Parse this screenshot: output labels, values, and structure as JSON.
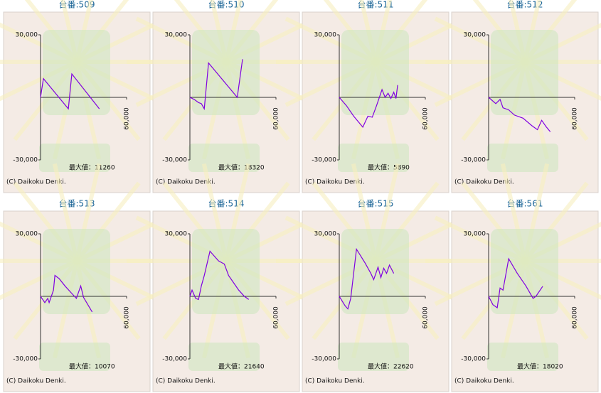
{
  "chart_data": [
    {
      "type": "line",
      "title": "台番:509",
      "color": "#8000e0",
      "xlim": [
        0,
        60000
      ],
      "xticks": [
        {
          "value": 60000,
          "label": "60,000"
        }
      ],
      "ylim": [
        -30000,
        30000
      ],
      "yticks": [
        {
          "value": 30000,
          "label": "30,000"
        },
        {
          "value": -30000,
          "label": "-30,000"
        }
      ],
      "x": [
        0,
        2000,
        19400,
        21800,
        41000
      ],
      "values": [
        0,
        9000,
        -5500,
        11260,
        -5500
      ],
      "annotation": "最大値：11260",
      "copyright": "(C) Daikoku Denki."
    },
    {
      "type": "line",
      "title": "台番:510",
      "color": "#8000e0",
      "xlim": [
        0,
        60000
      ],
      "xticks": [
        {
          "value": 60000,
          "label": "60,000"
        }
      ],
      "ylim": [
        -30000,
        30000
      ],
      "yticks": [
        {
          "value": 30000,
          "label": "30,000"
        },
        {
          "value": -30000,
          "label": "-30,000"
        }
      ],
      "x": [
        0,
        3000,
        6000,
        8000,
        10000,
        13000,
        33000,
        36700
      ],
      "values": [
        0,
        -1000,
        -2500,
        -3000,
        -5500,
        16500,
        0,
        18320
      ],
      "annotation": "最大値：18320",
      "copyright": "(C) Daikoku Denki."
    },
    {
      "type": "line",
      "title": "台番:511",
      "color": "#8000e0",
      "xlim": [
        0,
        60000
      ],
      "xticks": [
        {
          "value": 60000,
          "label": "60,000"
        }
      ],
      "ylim": [
        -30000,
        30000
      ],
      "yticks": [
        {
          "value": 30000,
          "label": "30,000"
        },
        {
          "value": -30000,
          "label": "-30,000"
        }
      ],
      "x": [
        0,
        5000,
        10000,
        16400,
        20000,
        23000,
        26000,
        29800,
        32000,
        34000,
        36000,
        38000,
        39500,
        40700
      ],
      "values": [
        0,
        -4000,
        -9000,
        -14300,
        -9000,
        -9500,
        -4000,
        3700,
        0,
        2000,
        -500,
        2500,
        -500,
        5890
      ],
      "annotation": "最大値：5890",
      "copyright": "(C) Daikoku Denki."
    },
    {
      "type": "line",
      "title": "台番:512",
      "color": "#8000e0",
      "xlim": [
        0,
        60000
      ],
      "xticks": [
        {
          "value": 60000,
          "label": "60,000"
        }
      ],
      "ylim": [
        -30000,
        30000
      ],
      "yticks": [
        {
          "value": 30000,
          "label": "30,000"
        },
        {
          "value": -30000,
          "label": "-30,000"
        }
      ],
      "x": [
        0,
        5000,
        8000,
        10000,
        14000,
        18000,
        24000,
        30000,
        34000,
        37000,
        40000,
        43000
      ],
      "values": [
        0,
        -3000,
        -1000,
        -5000,
        -6000,
        -8500,
        -10000,
        -13500,
        -15500,
        -11000,
        -14000,
        -16500
      ],
      "copyright": "(C) Daikoku Denki."
    },
    {
      "type": "line",
      "title": "台番:513",
      "color": "#8000e0",
      "xlim": [
        0,
        60000
      ],
      "xticks": [
        {
          "value": 60000,
          "label": "60,000"
        }
      ],
      "ylim": [
        -30000,
        30000
      ],
      "yticks": [
        {
          "value": 30000,
          "label": "30,000"
        },
        {
          "value": -30000,
          "label": "-30,000"
        }
      ],
      "x": [
        0,
        3000,
        5000,
        6000,
        9000,
        10000,
        13000,
        17000,
        21000,
        25000,
        28000,
        30000,
        36000
      ],
      "values": [
        0,
        -3000,
        -1000,
        -3000,
        3000,
        10070,
        8500,
        5000,
        2000,
        -1000,
        5000,
        -500,
        -7500
      ],
      "annotation": "最大値：10070",
      "copyright": "(C) Daikoku Denki."
    },
    {
      "type": "line",
      "title": "台番:514",
      "color": "#8000e0",
      "xlim": [
        0,
        60000
      ],
      "xticks": [
        {
          "value": 60000,
          "label": "60,000"
        }
      ],
      "ylim": [
        -30000,
        30000
      ],
      "yticks": [
        {
          "value": 30000,
          "label": "30,000"
        },
        {
          "value": -30000,
          "label": "-30,000"
        }
      ],
      "x": [
        0,
        1500,
        4000,
        6000,
        8000,
        10000,
        14000,
        20000,
        24000,
        27000,
        30000,
        34000,
        38000,
        41000
      ],
      "values": [
        0,
        3000,
        -1000,
        -1500,
        5000,
        10000,
        21640,
        17000,
        15500,
        10000,
        7000,
        3000,
        0,
        -1500
      ],
      "annotation": "最大値：21640",
      "copyright": "(C) Daikoku Denki."
    },
    {
      "type": "line",
      "title": "台番:515",
      "color": "#8000e0",
      "xlim": [
        0,
        60000
      ],
      "xticks": [
        {
          "value": 60000,
          "label": "60,000"
        }
      ],
      "ylim": [
        -30000,
        30000
      ],
      "yticks": [
        {
          "value": 30000,
          "label": "30,000"
        },
        {
          "value": -30000,
          "label": "-30,000"
        }
      ],
      "x": [
        0,
        4000,
        6000,
        8000,
        12000,
        18000,
        22000,
        24000,
        27000,
        29000,
        31000,
        33000,
        35000,
        38000
      ],
      "values": [
        0,
        -4500,
        -6000,
        -1000,
        22620,
        16000,
        11000,
        8000,
        14000,
        9000,
        13500,
        11000,
        15000,
        11000
      ],
      "annotation": "最大値：22620",
      "copyright": "(C) Daikoku Denki."
    },
    {
      "type": "line",
      "title": "台番:561",
      "color": "#8000e0",
      "xlim": [
        0,
        60000
      ],
      "xticks": [
        {
          "value": 60000,
          "label": "60,000"
        }
      ],
      "ylim": [
        -30000,
        30000
      ],
      "yticks": [
        {
          "value": 30000,
          "label": "30,000"
        },
        {
          "value": -30000,
          "label": "-30,000"
        }
      ],
      "x": [
        0,
        3000,
        6000,
        8000,
        10000,
        14000,
        20000,
        26000,
        31000,
        33000,
        37700
      ],
      "values": [
        0,
        -4000,
        -5500,
        4000,
        3000,
        18020,
        11000,
        5000,
        -1000,
        0,
        4800
      ],
      "annotation": "最大値：18020",
      "copyright": "(C) Daikoku Denki."
    }
  ]
}
